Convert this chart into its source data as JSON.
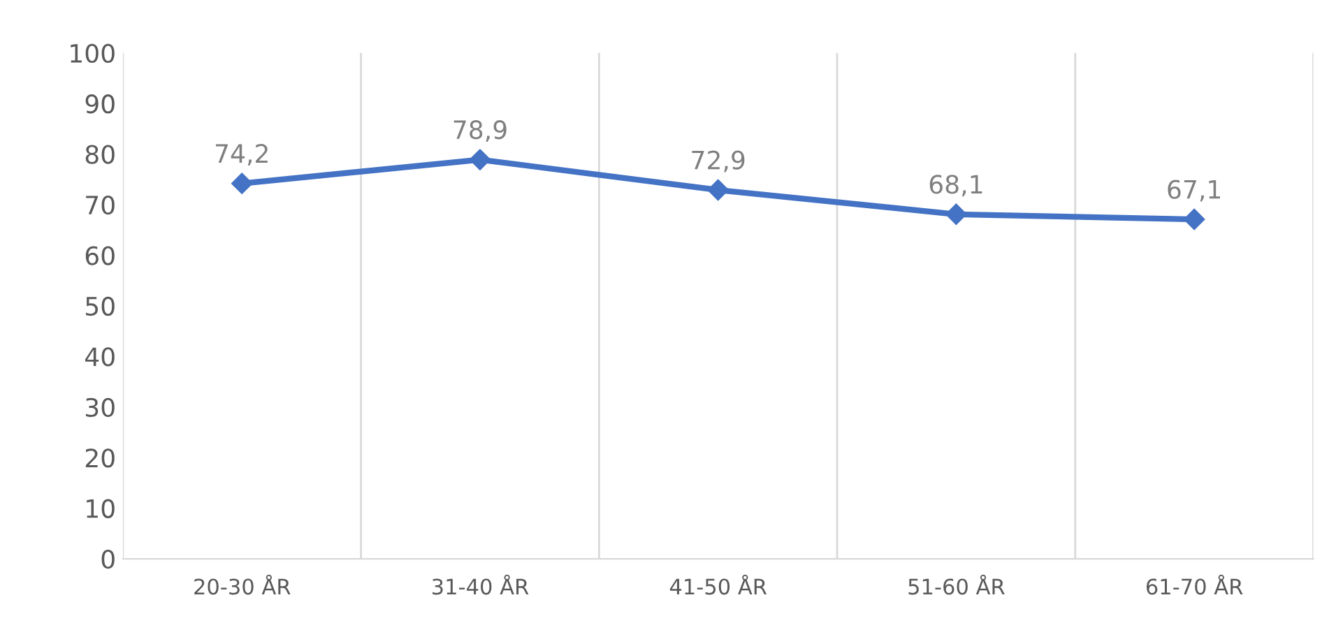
{
  "chart_data": {
    "type": "line",
    "categories": [
      "20-30 ÅR",
      "31-40 ÅR",
      "41-50 ÅR",
      "51-60 ÅR",
      "61-70 ÅR"
    ],
    "series": [
      {
        "color": "#4472c4",
        "values": [
          74.2,
          78.9,
          72.9,
          68.1,
          67.1
        ],
        "value_labels": [
          "74,2",
          "78,9",
          "72,9",
          "68,1",
          "67,1"
        ]
      }
    ],
    "ylim": [
      0,
      100
    ],
    "yticks": [
      0,
      10,
      20,
      30,
      40,
      50,
      60,
      70,
      80,
      90,
      100
    ],
    "grid": "x",
    "legend": false,
    "marker": "diamond",
    "line_style": "solid"
  }
}
